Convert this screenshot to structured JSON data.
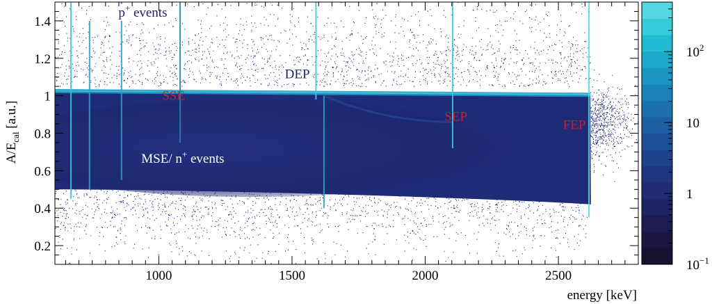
{
  "chart_data": {
    "type": "heatmap",
    "xlabel": "energy [keV]",
    "ylabel_main": "A/E",
    "ylabel_sub": "cal",
    "ylabel_unit": "[a.u.]",
    "x_axis": {
      "range": [
        610,
        2800
      ],
      "ticks": [
        1000,
        1500,
        2000,
        2500
      ],
      "tick_labels": [
        "1000",
        "1500",
        "2000",
        "2500"
      ]
    },
    "y_axis": {
      "range": [
        0.1,
        1.5
      ],
      "ticks": [
        0.2,
        0.4,
        0.6,
        0.8,
        1.0,
        1.2,
        1.4
      ],
      "tick_labels": [
        "0.2",
        "0.4",
        "0.6",
        "0.8",
        "1",
        "1.2",
        "1.4"
      ]
    },
    "colorbar": {
      "scale": "log",
      "range": [
        0.1,
        500
      ],
      "ticks": [
        {
          "value": 0.1,
          "base": "10",
          "exp": "−1"
        },
        {
          "value": 1,
          "base": "1",
          "exp": ""
        },
        {
          "value": 10,
          "base": "10",
          "exp": ""
        },
        {
          "value": 100,
          "base": "10",
          "exp": "2"
        }
      ],
      "colors": [
        "#17112f",
        "#1a1640",
        "#1c1c52",
        "#1d2363",
        "#1f2b72",
        "#1f3580",
        "#1f428c",
        "#1e5097",
        "#1c60a2",
        "#1a71ad",
        "#1983b7",
        "#1996c1",
        "#1aa8cb",
        "#22bad3",
        "#36cbda",
        "#55d8e0"
      ]
    },
    "background_band": {
      "y_center": 0.72,
      "color": "#1e2b77"
    },
    "scatter_color": "#1b1f6e",
    "main_band": {
      "y": 1.02,
      "x_from": 610,
      "x_to": 2620,
      "color": "#1a9fc9"
    },
    "vertical_lines": [
      {
        "x": 670,
        "y_from": 0.45,
        "y_to": 1.5,
        "color": "#3fc6dc"
      },
      {
        "x": 740,
        "y_from": 0.5,
        "y_to": 1.4,
        "color": "#2a9ec8"
      },
      {
        "x": 860,
        "y_from": 0.55,
        "y_to": 1.5,
        "color": "#2a9ec8"
      },
      {
        "x": 1080,
        "y_from": 0.75,
        "y_to": 1.5,
        "color": "#237fb4"
      },
      {
        "x": 1590,
        "y_from": 0.98,
        "y_to": 1.5,
        "color": "#3fc6dc"
      },
      {
        "x": 1620,
        "y_from": 0.4,
        "y_to": 1.0,
        "color": "#2a9ec8"
      },
      {
        "x": 2103,
        "y_from": 0.72,
        "y_to": 1.5,
        "color": "#3fc6dc"
      },
      {
        "x": 2615,
        "y_from": 0.35,
        "y_to": 1.5,
        "color": "#55d8e0"
      }
    ],
    "annotations": [
      {
        "text": "p",
        "sup": "+",
        "rest": " events",
        "x": 940,
        "y": 1.43,
        "color": "#1c1f6a",
        "box": true
      },
      {
        "text": "DEP",
        "sup": "",
        "rest": "",
        "x": 1520,
        "y": 1.1,
        "color": "#1c1f6a",
        "box": true
      },
      {
        "text": "SSE",
        "sup": "",
        "rest": "",
        "x": 1055,
        "y": 0.985,
        "color": "#c81e2e",
        "box": false
      },
      {
        "text": "SEP",
        "sup": "",
        "rest": "",
        "x": 2115,
        "y": 0.875,
        "color": "#c81e2e",
        "box": false
      },
      {
        "text": "FEP",
        "sup": "",
        "rest": "",
        "x": 2560,
        "y": 0.83,
        "color": "#c81e2e",
        "box": false
      },
      {
        "text": "MSE/ n",
        "sup": "+",
        "rest": " events",
        "x": 1090,
        "y": 0.65,
        "color": "#ffffff",
        "box": false
      }
    ]
  }
}
